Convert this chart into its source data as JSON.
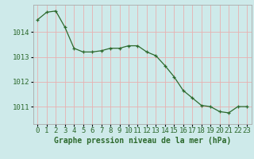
{
  "x": [
    0,
    1,
    2,
    3,
    4,
    5,
    6,
    7,
    8,
    9,
    10,
    11,
    12,
    13,
    14,
    15,
    16,
    17,
    18,
    19,
    20,
    21,
    22,
    23
  ],
  "y": [
    1014.5,
    1014.8,
    1014.85,
    1014.2,
    1013.35,
    1013.2,
    1013.2,
    1013.25,
    1013.35,
    1013.35,
    1013.45,
    1013.45,
    1013.2,
    1013.05,
    1012.65,
    1012.2,
    1011.65,
    1011.35,
    1011.05,
    1011.0,
    1010.8,
    1010.75,
    1011.0,
    1011.0
  ],
  "line_color": "#2d6a2d",
  "marker": "+",
  "marker_size": 3,
  "line_width": 0.9,
  "bg_color": "#ceeaea",
  "grid_color": "#e8b0b0",
  "tick_label_color": "#2d6a2d",
  "xlabel": "Graphe pression niveau de la mer (hPa)",
  "xlabel_color": "#2d6a2d",
  "xlabel_fontsize": 7,
  "yticks": [
    1011,
    1012,
    1013,
    1014
  ],
  "ylim": [
    1010.3,
    1015.1
  ],
  "xlim": [
    -0.5,
    23.5
  ],
  "tick_fontsize": 6.5,
  "axis_color": "#aaaaaa"
}
